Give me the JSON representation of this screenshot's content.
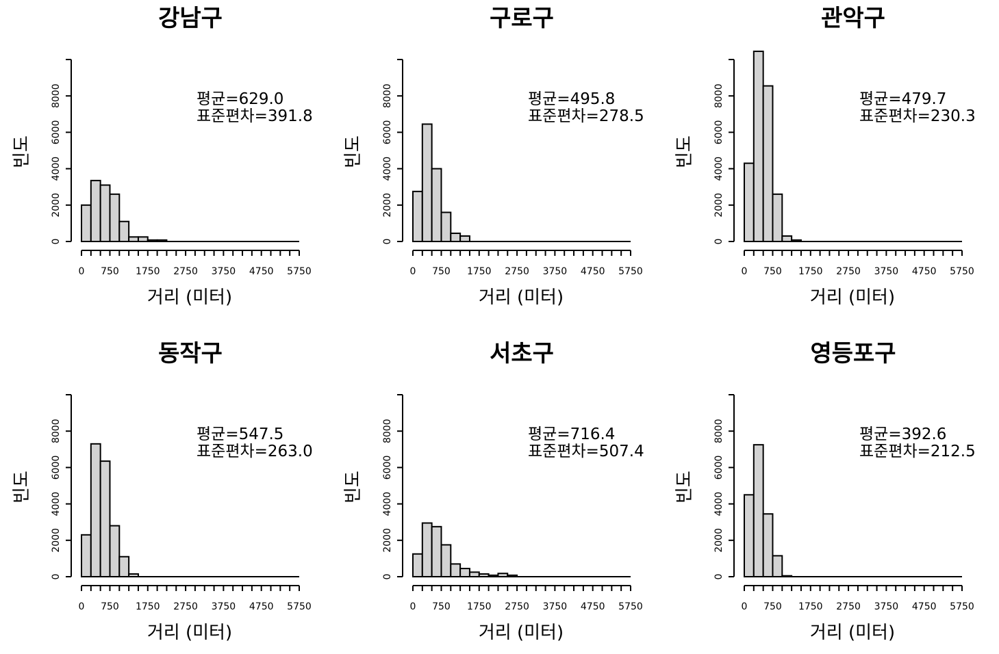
{
  "page": {
    "stat_mean_prefix": "평균=",
    "stat_sd_prefix": "표준편차="
  },
  "chart_data": [
    {
      "type": "bar",
      "title": "강남구",
      "xlabel": "거리 (미터)",
      "ylabel": "빈도",
      "bin_width": 250,
      "x_range": [
        0,
        5750
      ],
      "ylim": [
        0,
        10000
      ],
      "x_ticks": [
        0,
        750,
        1750,
        2750,
        3750,
        4750,
        5750
      ],
      "y_ticks": [
        0,
        2000,
        4000,
        6000,
        8000
      ],
      "values": [
        2000,
        3350,
        3100,
        2600,
        1100,
        250,
        250,
        80,
        80
      ],
      "mean": "629.0",
      "sd": "391.8"
    },
    {
      "type": "bar",
      "title": "구로구",
      "xlabel": "거리 (미터)",
      "ylabel": "빈도",
      "bin_width": 250,
      "x_range": [
        0,
        5750
      ],
      "ylim": [
        0,
        10000
      ],
      "x_ticks": [
        0,
        750,
        1750,
        2750,
        3750,
        4750,
        5750
      ],
      "y_ticks": [
        0,
        2000,
        4000,
        6000,
        8000
      ],
      "values": [
        2750,
        6450,
        4000,
        1600,
        450,
        300
      ],
      "mean": "495.8",
      "sd": "278.5"
    },
    {
      "type": "bar",
      "title": "관악구",
      "xlabel": "거리 (미터)",
      "ylabel": "빈도",
      "bin_width": 250,
      "x_range": [
        0,
        5750
      ],
      "ylim": [
        0,
        10000
      ],
      "x_ticks": [
        0,
        750,
        1750,
        2750,
        3750,
        4750,
        5750
      ],
      "y_ticks": [
        0,
        2000,
        4000,
        6000,
        8000
      ],
      "values": [
        4300,
        10450,
        8550,
        2600,
        300,
        80
      ],
      "mean": "479.7",
      "sd": "230.3"
    },
    {
      "type": "bar",
      "title": "동작구",
      "xlabel": "거리 (미터)",
      "ylabel": "빈도",
      "bin_width": 250,
      "x_range": [
        0,
        5750
      ],
      "ylim": [
        0,
        10000
      ],
      "x_ticks": [
        0,
        750,
        1750,
        2750,
        3750,
        4750,
        5750
      ],
      "y_ticks": [
        0,
        2000,
        4000,
        6000,
        8000
      ],
      "values": [
        2300,
        7300,
        6350,
        2800,
        1100,
        150
      ],
      "mean": "547.5",
      "sd": "263.0"
    },
    {
      "type": "bar",
      "title": "서초구",
      "xlabel": "거리 (미터)",
      "ylabel": "빈도",
      "bin_width": 250,
      "x_range": [
        0,
        5750
      ],
      "ylim": [
        0,
        10000
      ],
      "x_ticks": [
        0,
        750,
        1750,
        2750,
        3750,
        4750,
        5750
      ],
      "y_ticks": [
        0,
        2000,
        4000,
        6000,
        8000
      ],
      "values": [
        1250,
        2950,
        2750,
        1750,
        700,
        450,
        250,
        150,
        80,
        180,
        80
      ],
      "mean": "716.4",
      "sd": "507.4"
    },
    {
      "type": "bar",
      "title": "영등포구",
      "xlabel": "거리 (미터)",
      "ylabel": "빈도",
      "bin_width": 250,
      "x_range": [
        0,
        5750
      ],
      "ylim": [
        0,
        10000
      ],
      "x_ticks": [
        0,
        750,
        1750,
        2750,
        3750,
        4750,
        5750
      ],
      "y_ticks": [
        0,
        2000,
        4000,
        6000,
        8000
      ],
      "values": [
        4500,
        7250,
        3450,
        1150,
        50
      ],
      "mean": "392.6",
      "sd": "212.5"
    }
  ]
}
